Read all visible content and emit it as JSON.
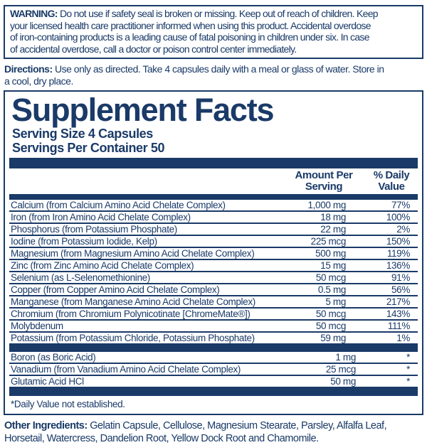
{
  "colors": {
    "navy": "#1a3a68",
    "background": "#ffffff"
  },
  "warning": {
    "label": "WARNING:",
    "text": "Do not use if safety seal is broken or missing. Keep out of reach of children. Keep\nyour licensed health care practitioner informed when using this product. Accidental overdose\nof iron-containing products is a leading cause of fatal poisoning in children under six. In case\nof accidental overdose, call a doctor or poison control center immediately."
  },
  "directions": {
    "label": "Directions:",
    "text": "Use only as directed. Take 4 capsules daily with a meal or glass of water. Store in\na cool, dry place."
  },
  "facts": {
    "title": "Supplement Facts",
    "serving_size": "Serving Size 4 Capsules",
    "servings_per_container": "Servings Per Container 50",
    "col_amount": "Amount Per\nServing",
    "col_dv": "% Daily\nValue",
    "rows": [
      {
        "name": "Calcium (from Calcium Amino Acid Chelate Complex)",
        "amount": "1,000 mg",
        "dv": "77%"
      },
      {
        "name": "Iron (from Iron Amino Acid Chelate Complex)",
        "amount": "18 mg",
        "dv": "100%"
      },
      {
        "name": "Phosphorus (from Potassium Phosphate)",
        "amount": "22 mg",
        "dv": "2%"
      },
      {
        "name": "Iodine (from Potassium Iodide, Kelp)",
        "amount": "225 mcg",
        "dv": "150%"
      },
      {
        "name": "Magnesium (from Magnesium Amino Acid Chelate Complex)",
        "amount": "500 mg",
        "dv": "119%"
      },
      {
        "name": "Zinc (from Zinc Amino Acid Chelate Complex)",
        "amount": "15 mg",
        "dv": "136%"
      },
      {
        "name": "Selenium (as L-Selenomethionine)",
        "amount": "50 mcg",
        "dv": "91%"
      },
      {
        "name": "Copper (from Copper Amino Acid Chelate Complex)",
        "amount": "0.5 mg",
        "dv": "56%"
      },
      {
        "name": "Manganese (from Manganese Amino Acid Chelate Complex)",
        "amount": "5 mg",
        "dv": "217%"
      },
      {
        "name": "Chromium (from Chromium Polynicotinate [ChromeMate®])",
        "amount": "50 mcg",
        "dv": "143%"
      },
      {
        "name": "Molybdenum",
        "amount": "50 mcg",
        "dv": "111%"
      },
      {
        "name": "Potassium (from Potassium Chloride, Potassium Phosphate)",
        "amount": "59 mg",
        "dv": "1%"
      }
    ],
    "rows_nodv": [
      {
        "name": "Boron (as Boric Acid)",
        "amount": "1 mg",
        "dv": "*"
      },
      {
        "name": "Vanadium (from Vanadium Amino Acid Chelate Complex)",
        "amount": "25 mcg",
        "dv": "*"
      },
      {
        "name": "Glutamic Acid HCl",
        "amount": "50 mg",
        "dv": "*"
      }
    ],
    "footnote": "*Daily Value not established."
  },
  "other_ingredients": {
    "label": "Other Ingredients:",
    "text": "Gelatin Capsule, Cellulose, Magnesium Stearate, Parsley, Alfalfa Leaf,\nHorsetail, Watercress, Dandelion Root, Yellow Dock Root and Chamomile."
  }
}
